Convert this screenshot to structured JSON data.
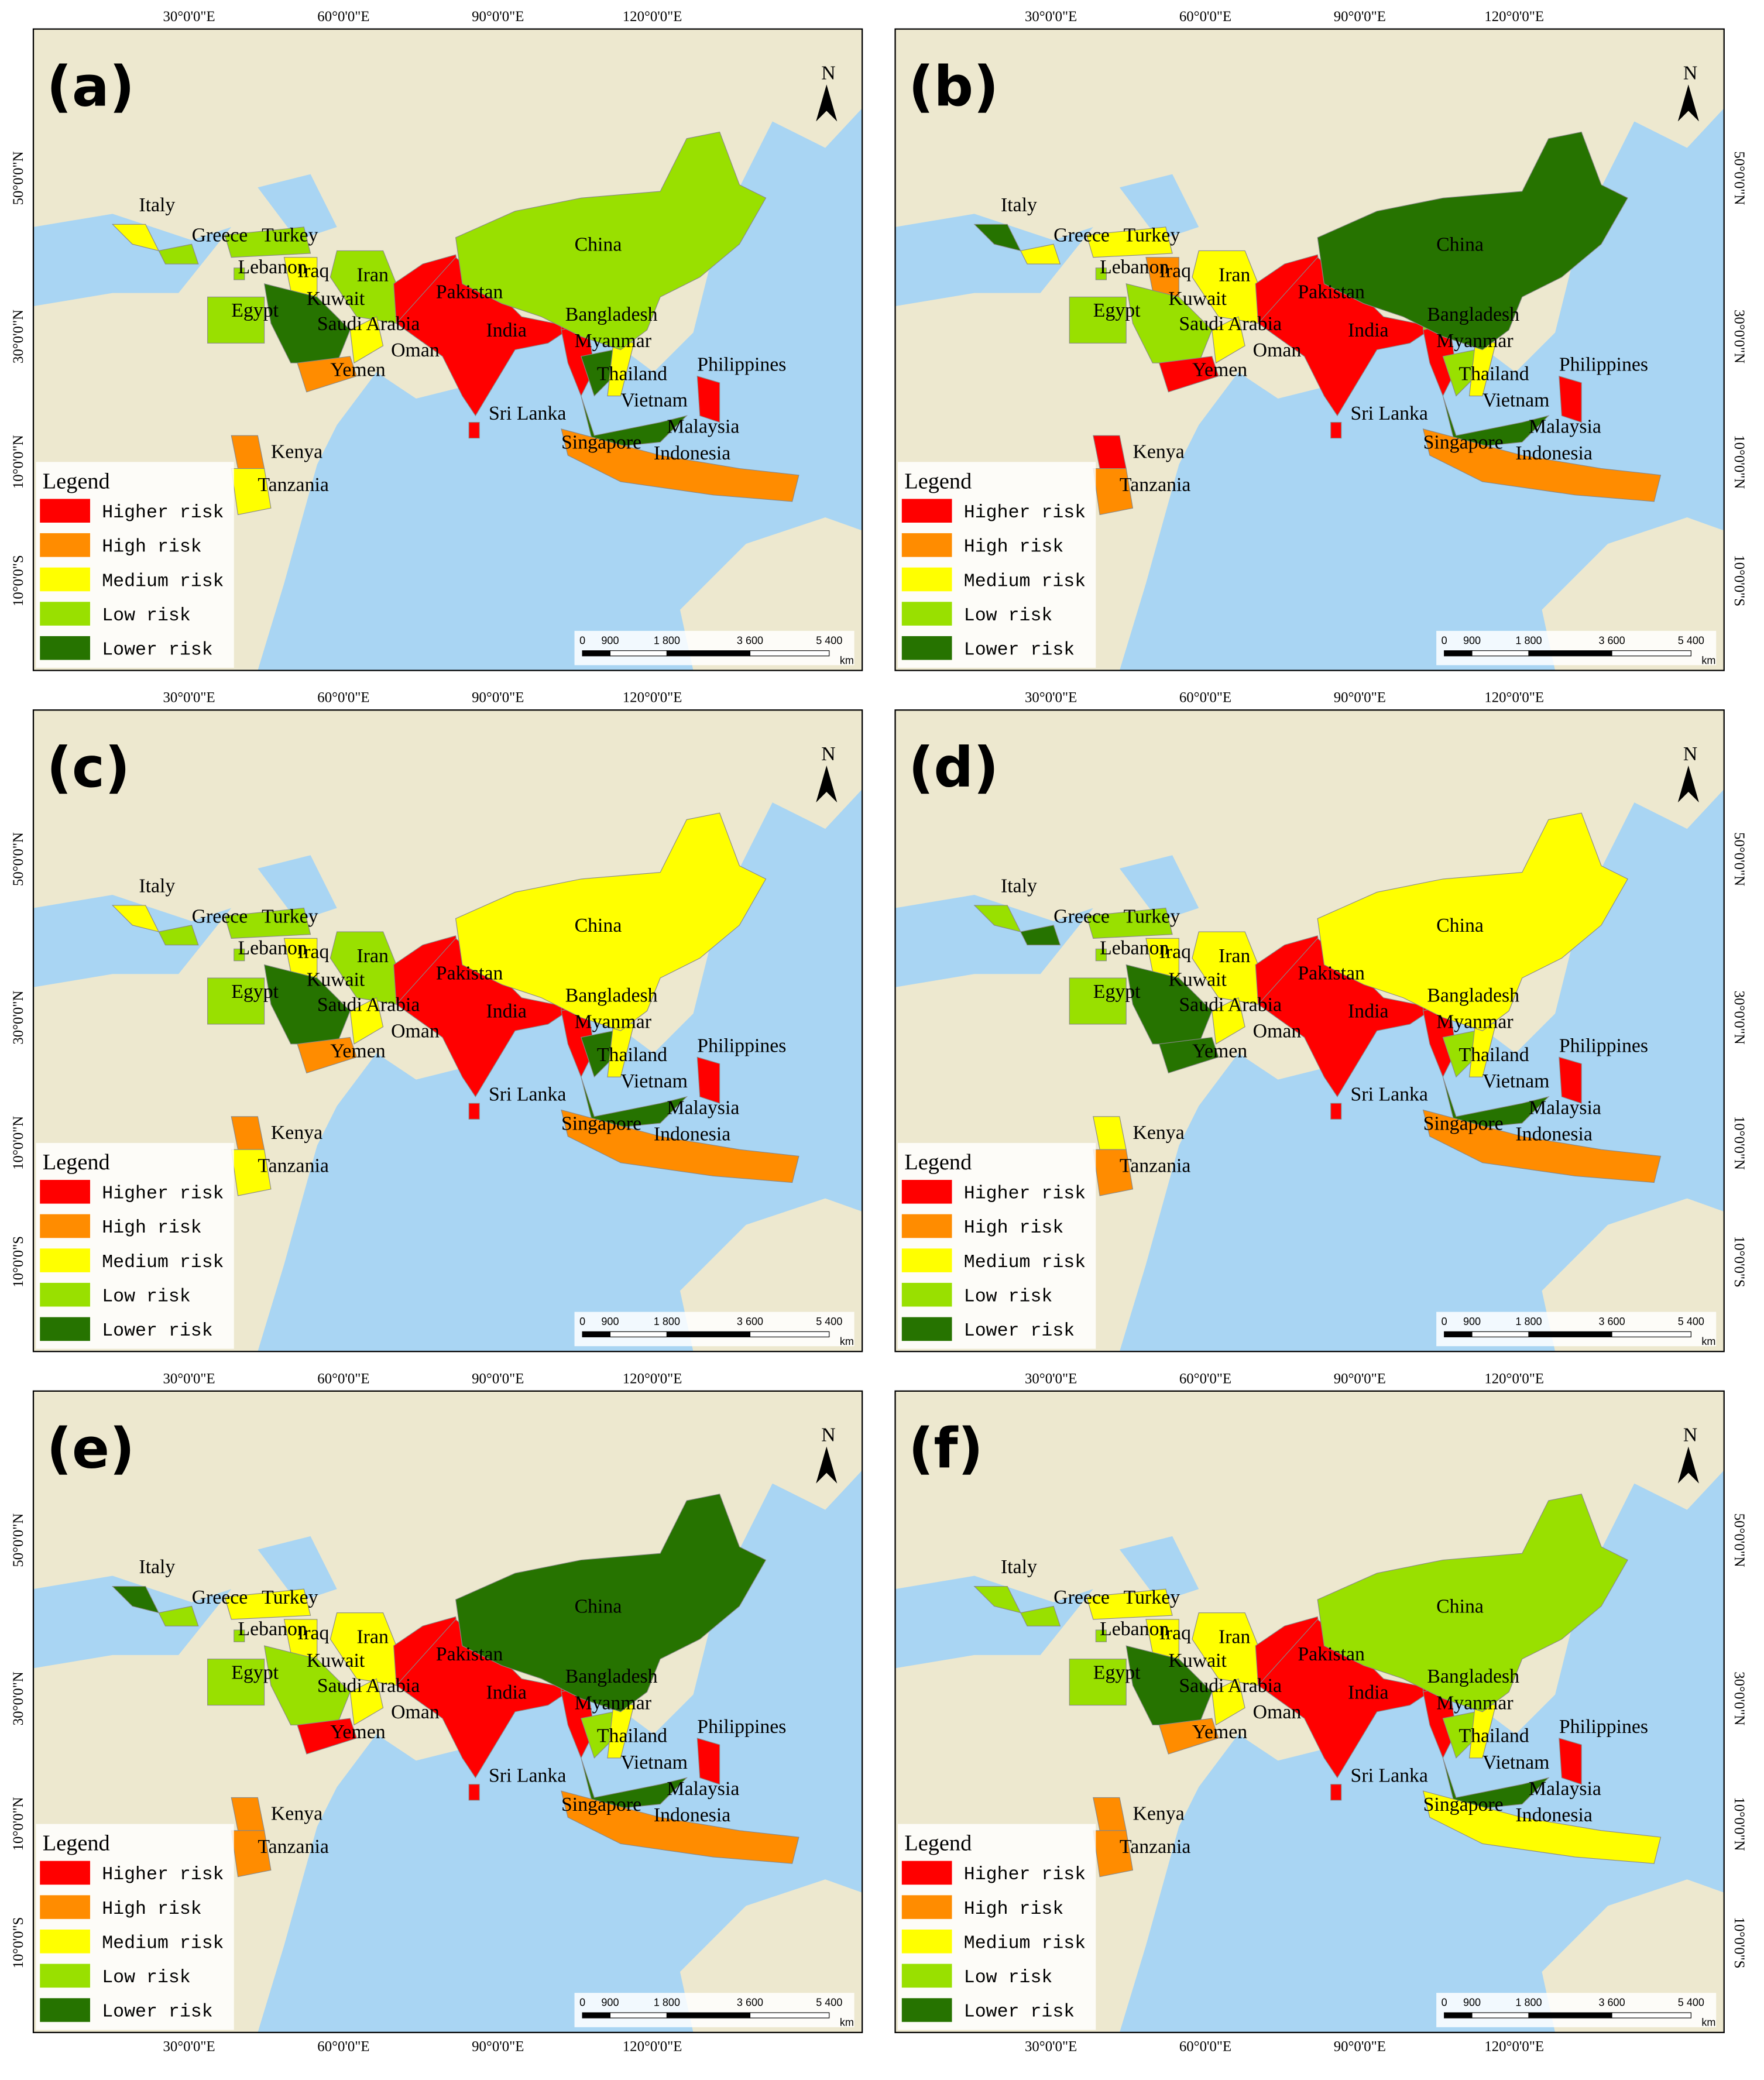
{
  "panels": [
    {
      "label": "(a)",
      "risk": [
        2,
        3,
        3,
        3,
        2,
        3,
        4,
        3,
        4,
        2,
        1,
        0,
        0,
        0,
        0,
        0,
        4,
        2,
        0,
        4,
        1,
        1,
        3,
        1,
        2
      ]
    },
    {
      "label": "(b)",
      "risk": [
        4,
        2,
        2,
        3,
        1,
        2,
        3,
        3,
        3,
        2,
        0,
        0,
        0,
        3,
        0,
        0,
        3,
        2,
        0,
        4,
        1,
        1,
        4,
        0,
        1
      ]
    },
    {
      "label": "(c)",
      "risk": [
        2,
        3,
        3,
        3,
        2,
        3,
        4,
        3,
        4,
        2,
        1,
        0,
        0,
        0,
        0,
        0,
        4,
        2,
        0,
        4,
        1,
        1,
        2,
        1,
        2
      ]
    },
    {
      "label": "(d)",
      "risk": [
        3,
        4,
        3,
        3,
        2,
        2,
        4,
        3,
        4,
        2,
        4,
        0,
        0,
        0,
        0,
        0,
        3,
        2,
        0,
        4,
        1,
        1,
        2,
        2,
        1
      ]
    },
    {
      "label": "(e)",
      "risk": [
        4,
        3,
        2,
        3,
        2,
        2,
        3,
        3,
        3,
        2,
        0,
        0,
        0,
        0,
        0,
        0,
        3,
        2,
        0,
        4,
        1,
        1,
        4,
        1,
        1
      ]
    },
    {
      "label": "(f)",
      "risk": [
        3,
        3,
        2,
        3,
        2,
        2,
        4,
        3,
        4,
        2,
        1,
        0,
        0,
        0,
        0,
        0,
        3,
        2,
        0,
        4,
        2,
        2,
        3,
        1,
        1
      ]
    }
  ],
  "countries": [
    "Italy",
    "Greece",
    "Turkey",
    "Lebanon",
    "Iraq",
    "Iran",
    "Kuwait",
    "Egypt",
    "Saudi Arabia",
    "Oman",
    "Yemen",
    "Pakistan",
    "India",
    "Bangladesh",
    "Myanmar",
    "Sri Lanka",
    "Thailand",
    "Vietnam",
    "Philippines",
    "Malaysia",
    "Singapore",
    "Indonesia",
    "China",
    "Kenya",
    "Tanzania"
  ],
  "legend": {
    "title": "Legend",
    "items": [
      {
        "label": "Higher risk",
        "color": "#ff0000"
      },
      {
        "label": "High risk",
        "color": "#ff8c00"
      },
      {
        "label": "Medium risk",
        "color": "#ffff00"
      },
      {
        "label": "Low risk",
        "color": "#99e000"
      },
      {
        "label": "Lower risk",
        "color": "#267300"
      }
    ]
  },
  "lon_ticks": [
    "30°0'0\"E",
    "60°0'0\"E",
    "90°0'0\"E",
    "120°0'0\"E"
  ],
  "lat_ticks": [
    "50°0'0\"N",
    "30°0'0\"N",
    "10°0'0\"N",
    "10°0'0\"S"
  ],
  "scale_bar": [
    "0",
    "900",
    "1 800",
    "3 600",
    "5 400",
    "km"
  ],
  "north": "N"
}
